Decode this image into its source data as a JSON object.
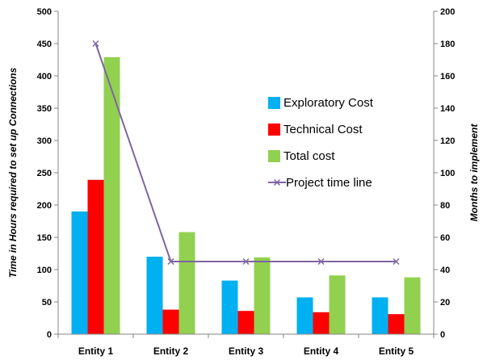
{
  "chart_data": {
    "type": "bar",
    "categories": [
      "Entity 1",
      "Entity 2",
      "Entity 3",
      "Entity 4",
      "Entity 5"
    ],
    "series": [
      {
        "name": "Exploratory Cost",
        "type": "bar",
        "axis": "left",
        "color": "#00B0F0",
        "values": [
          190,
          120,
          83,
          57,
          57
        ]
      },
      {
        "name": "Technical Cost",
        "type": "bar",
        "axis": "left",
        "color": "#FF0000",
        "values": [
          239,
          38,
          36,
          34,
          31
        ]
      },
      {
        "name": "Total cost",
        "type": "bar",
        "axis": "left",
        "color": "#92D050",
        "values": [
          429,
          158,
          119,
          91,
          88
        ]
      },
      {
        "name": "Project time line",
        "type": "line",
        "axis": "right",
        "color": "#7F64A2",
        "marker": "x",
        "values": [
          180,
          45,
          45,
          45,
          45
        ]
      }
    ],
    "ylabel": "Time in Hours required to set up Connections",
    "y2label": "Months to implement",
    "ylim": [
      0,
      500
    ],
    "y2lim": [
      0,
      200
    ],
    "yticks": [
      "0",
      "50",
      "100",
      "150",
      "200",
      "250",
      "300",
      "350",
      "400",
      "450",
      "500"
    ],
    "y2ticks": [
      "0",
      "20",
      "40",
      "60",
      "80",
      "100",
      "120",
      "140",
      "160",
      "180",
      "200"
    ],
    "legend_position": "right-center inside plot",
    "grid": false
  }
}
